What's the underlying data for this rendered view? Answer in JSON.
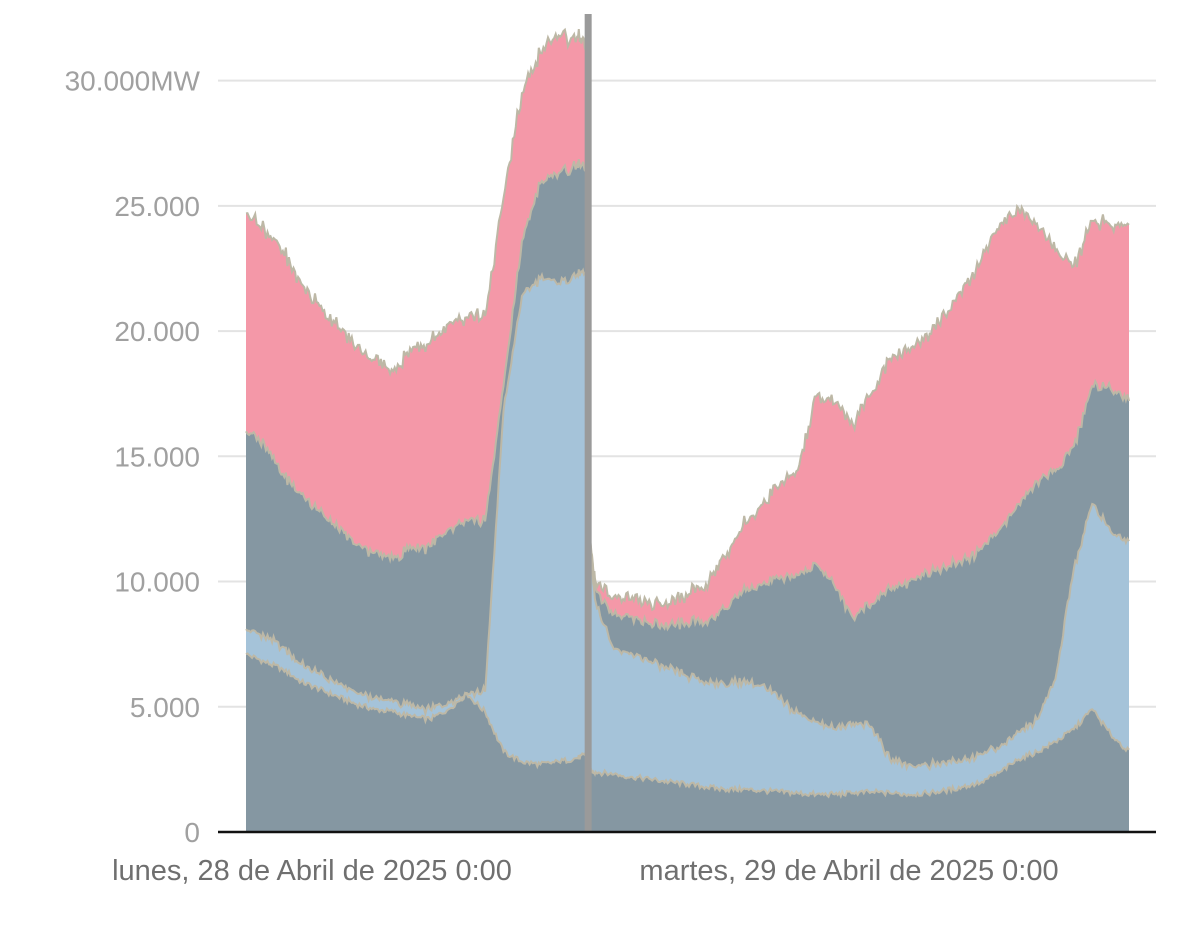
{
  "chart_data": {
    "type": "area",
    "stacked": true,
    "x_unit": "hours since start of plotted range",
    "x_range": [
      0,
      48
    ],
    "y_range": [
      0,
      32500
    ],
    "grid": {
      "horizontal": true,
      "vertical": false
    },
    "legend": null,
    "y_ticks": [
      {
        "value": 0,
        "label": "0"
      },
      {
        "value": 5000,
        "label": "5.000"
      },
      {
        "value": 10000,
        "label": "10.000"
      },
      {
        "value": 15000,
        "label": "15.000"
      },
      {
        "value": 20000,
        "label": "20.000"
      },
      {
        "value": 25000,
        "label": "25.000"
      },
      {
        "value": 30000,
        "label": "30.000MW"
      }
    ],
    "x_ticks": [
      {
        "value": 0,
        "label": "lunes, 28 de Abril de 2025 0:00"
      },
      {
        "value": 24,
        "label": "martes, 29 de Abril de 2025 0:00"
      }
    ],
    "marker_line": {
      "x": 18.6,
      "color": "#9a9a9a"
    },
    "series": [
      {
        "color": "#8597a2",
        "x": [
          0,
          1,
          2,
          3,
          4,
          5,
          6,
          7,
          8,
          9,
          10,
          11,
          12,
          13,
          14,
          15,
          16,
          17,
          18,
          18.55,
          18.62,
          19,
          20,
          21,
          22,
          23,
          24,
          25,
          26,
          27,
          28,
          29,
          30,
          31,
          32,
          33,
          34,
          35,
          36,
          37,
          38,
          39,
          40,
          41,
          42,
          43,
          44,
          45,
          46,
          47,
          48
        ],
        "values": [
          7100,
          6800,
          6500,
          6000,
          5700,
          5400,
          5100,
          4900,
          4800,
          4600,
          4500,
          4900,
          5500,
          4800,
          3200,
          2800,
          2700,
          2800,
          2950,
          3100,
          2450,
          2400,
          2300,
          2200,
          2100,
          2000,
          1900,
          1800,
          1700,
          1700,
          1650,
          1600,
          1550,
          1500,
          1500,
          1550,
          1600,
          1550,
          1500,
          1550,
          1650,
          1800,
          2000,
          2400,
          2900,
          3200,
          3600,
          4100,
          4900,
          3900,
          3200
        ]
      },
      {
        "color": "#a5c3d9",
        "x": [
          0,
          1,
          2,
          3,
          4,
          5,
          6,
          7,
          8,
          9,
          10,
          11,
          12,
          13,
          14,
          15,
          16,
          17,
          18,
          18.55,
          18.62,
          19,
          20,
          21,
          22,
          23,
          24,
          25,
          26,
          27,
          28,
          29,
          30,
          31,
          32,
          33,
          34,
          35,
          36,
          37,
          38,
          39,
          40,
          41,
          42,
          43,
          44,
          45,
          46,
          47,
          48
        ],
        "values": [
          1000,
          1000,
          900,
          700,
          600,
          500,
          450,
          450,
          400,
          400,
          400,
          300,
          50,
          800,
          13600,
          18600,
          19400,
          19100,
          19300,
          19200,
          9300,
          6800,
          5000,
          4900,
          4700,
          4500,
          4300,
          4200,
          4200,
          4300,
          4200,
          3700,
          3200,
          2900,
          2600,
          2800,
          2600,
          1350,
          1200,
          1150,
          1100,
          1100,
          1100,
          1000,
          1100,
          1300,
          2500,
          6400,
          8200,
          8100,
          8400
        ]
      },
      {
        "color": "#8597a2",
        "x": [
          0,
          1,
          2,
          3,
          4,
          5,
          6,
          7,
          8,
          9,
          10,
          11,
          12,
          13,
          14,
          15,
          16,
          17,
          18,
          18.55,
          18.62,
          19,
          20,
          21,
          22,
          23,
          24,
          25,
          26,
          27,
          28,
          29,
          30,
          31,
          32,
          33,
          34,
          35,
          36,
          37,
          38,
          39,
          40,
          41,
          42,
          43,
          44,
          45,
          46,
          47,
          48
        ],
        "values": [
          7900,
          7700,
          6900,
          6800,
          6500,
          6200,
          5900,
          5800,
          5700,
          6300,
          6500,
          6900,
          6900,
          6800,
          1000,
          2200,
          3800,
          4400,
          4400,
          4100,
          400,
          500,
          1400,
          1500,
          1500,
          1700,
          2100,
          2400,
          3000,
          3600,
          4000,
          4800,
          5500,
          6300,
          5700,
          4200,
          4900,
          6800,
          7300,
          7700,
          7800,
          8000,
          8200,
          8700,
          9100,
          9500,
          8300,
          4900,
          4700,
          5700,
          5700
        ]
      },
      {
        "color": "#f498a8",
        "x": [
          0,
          1,
          2,
          3,
          4,
          5,
          6,
          7,
          8,
          9,
          10,
          11,
          12,
          13,
          14,
          15,
          16,
          17,
          18,
          18.55,
          18.62,
          19,
          20,
          21,
          22,
          23,
          24,
          25,
          26,
          27,
          28,
          29,
          30,
          31,
          32,
          33,
          34,
          35,
          36,
          37,
          38,
          39,
          40,
          41,
          42,
          43,
          44,
          45,
          46,
          47,
          48
        ],
        "values": [
          8700,
          8600,
          8900,
          8400,
          8200,
          8000,
          7900,
          7700,
          7500,
          7900,
          8100,
          8200,
          8100,
          8200,
          7500,
          5900,
          5200,
          5500,
          5100,
          4900,
          100,
          300,
          700,
          800,
          800,
          900,
          1100,
          1500,
          2100,
          2600,
          3200,
          3700,
          4200,
          6700,
          7300,
          7700,
          8400,
          9200,
          9300,
          9500,
          10100,
          10900,
          11600,
          12200,
          11800,
          10300,
          8800,
          7200,
          6600,
          6500,
          6900
        ]
      }
    ]
  }
}
